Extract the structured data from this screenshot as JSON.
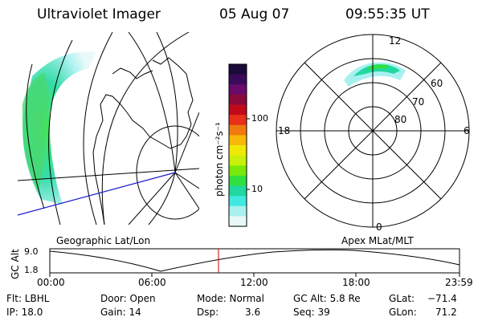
{
  "header": {
    "instrument": "Ultraviolet Imager",
    "date": "05 Aug 07",
    "time": "09:55:35 UT"
  },
  "geo_map": {
    "label": "Geographic Lat/Lon"
  },
  "polar_map": {
    "label": "Apex  MLat/MLT",
    "mlt_labels": {
      "top": "12",
      "left": "18",
      "right": "6",
      "bottom": "0"
    },
    "lat_labels": [
      "60",
      "70",
      "80"
    ]
  },
  "colorbar": {
    "unit_label": "photon cm⁻²s⁻¹",
    "tick_labels": [
      "100",
      "10"
    ],
    "colors": [
      "#1a0a3a",
      "#3a0a5a",
      "#6a0a6a",
      "#8a0a3a",
      "#c00a1a",
      "#e8301a",
      "#f07a10",
      "#f8b808",
      "#f0e808",
      "#c8f00a",
      "#7ae80a",
      "#30e040",
      "#20d8a0",
      "#40e8e0",
      "#a8f0f0",
      "#e8f8f8"
    ]
  },
  "altitude_plot": {
    "axis_label": "GC Alt",
    "y_ticks": [
      "9.0",
      "1.8"
    ],
    "x_ticks": [
      "00:00",
      "06:00",
      "12:00",
      "18:00",
      "23:59"
    ],
    "current_marker_color": "#cc0000"
  },
  "status": {
    "filter": "Flt: LBHL",
    "ip": "IP: 18.0",
    "door": "Door: Open",
    "gain": "Gain: 14",
    "mode": "Mode: Normal",
    "dsp_label": "Dsp:",
    "dsp_value": "3.6",
    "gc_alt": "GC Alt: 5.8 Re",
    "seq": "Seq: 39",
    "glat_label": "GLat:",
    "glat_value": "−71.4",
    "glon_label": "GLon:",
    "glon_value": "71.2"
  }
}
